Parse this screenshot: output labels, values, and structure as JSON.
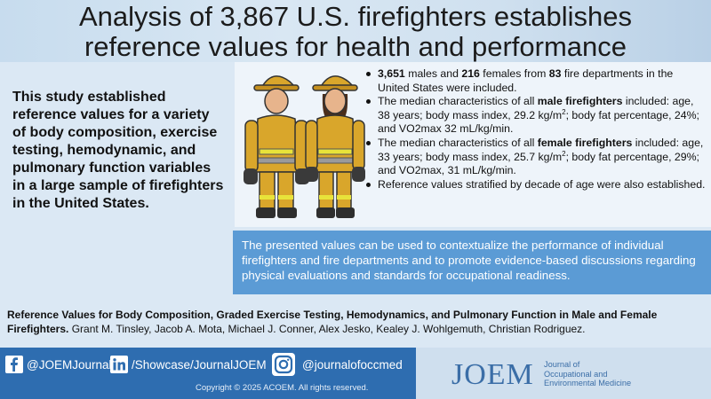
{
  "title": {
    "line1": "Analysis of 3,867 U.S. firefighters establishes",
    "line2": "reference values for health and performance"
  },
  "summary": "This study established reference values for a variety of body composition, exercise testing, hemodynamic, and pulmonary function variables in a large sample of firefighters in the United States.",
  "bullets": {
    "b1": {
      "males": "3,651",
      "t1": " males and ",
      "females": "216",
      "t2": " females from ",
      "departments": "83",
      "t3": " fire departments in the United States were included."
    },
    "b2": {
      "pre": "The median characteristics of all ",
      "bold": "male firefighters",
      "mid": " included: age, 38 years; body mass index, 29.2 kg/m",
      "sup": "2",
      "post": "; body fat percentage, 24%; and VO2max 32 mL/kg/min."
    },
    "b3": {
      "pre": "The median characteristics of all ",
      "bold": "female firefighters",
      "mid": " included: age, 33 years; body mass index, 25.7 kg/m",
      "sup": "2",
      "post": "; body fat percentage, 29%; and VO2max, 31 mL/kg/min."
    },
    "b4": "Reference values stratified by decade of age were also established."
  },
  "conclusion": "The presented values can be used to contextualize the performance of individual firefighters and fire departments and to promote evidence-based discussions regarding physical evaluations and standards for occupational readiness.",
  "citation": {
    "title": "Reference Values for Body Composition, Graded Exercise Testing, Hemodynamics, and Pulmonary Function in Male and Female Firefighters.",
    "authors": "Grant M. Tinsley, Jacob A. Mota, Michael J. Conner, Alex Jesko, Kealey J. Wohlgemuth, Christian Rodriguez."
  },
  "footer": {
    "facebook": "@JOEMJournal",
    "linkedin": "/Showcase/JournalJOEM",
    "instagram": "@journalofoccmed",
    "copyright": "Copyright © 2025  ACOEM.  All rights reserved.",
    "logo": "JOEM",
    "journal_name_1": "Journal of",
    "journal_name_2": "Occupational and",
    "journal_name_3": "Environmental Medicine"
  },
  "colors": {
    "conclusion_bg": "#5b9bd5",
    "footer_bg": "#2e6db0",
    "suit": "#d9a62b",
    "reflective": "#e8e33a"
  },
  "icons": [
    "facebook-icon",
    "linkedin-icon",
    "instagram-icon",
    "firefighter-illustration"
  ]
}
